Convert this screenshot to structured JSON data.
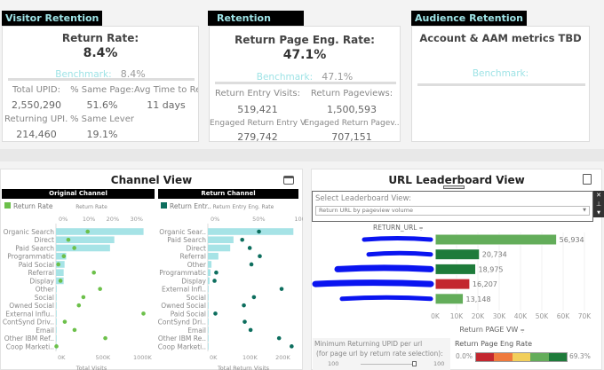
{
  "visitor_retention": {
    "tab": "Visitor Retention",
    "title": "Return Rate:",
    "value": "8.4%",
    "benchmark_label": "Benchmark:",
    "benchmark_value": "8.4%",
    "metrics": [
      {
        "label": "Total UPID:",
        "value": "2,550,290"
      },
      {
        "label": "% Same Page:",
        "value": "51.6%"
      },
      {
        "label": "Avg Time to Re..",
        "value": "11 days"
      },
      {
        "label": "Returning UPI..",
        "value": "214,460"
      },
      {
        "label": "% Same Lever:",
        "value": "19.1%"
      }
    ]
  },
  "retention_quality": {
    "tab": "Retention Quality",
    "title": "Return Page Eng. Rate:",
    "value": "47.1%",
    "benchmark_label": "Benchmark:",
    "benchmark_value": "47.1%",
    "metrics": [
      {
        "label": "Return Entry Visits:",
        "value": "519,421"
      },
      {
        "label": "Return Pageviews:",
        "value": "1,500,593"
      },
      {
        "label": "Engaged Return Entry V..",
        "value": "279,742"
      },
      {
        "label": "Engaged Return Pagev..",
        "value": "707,151"
      }
    ]
  },
  "audience_retention": {
    "tab": "Audience Retention",
    "title": "Account & AAM metrics TBD",
    "benchmark_label": "Benchmark:"
  },
  "channel_view": {
    "title": "Channel View",
    "icon": "window-icon"
  },
  "chart_data": [
    {
      "type": "bar",
      "title": "Original Channel",
      "legend": "Return Rate",
      "top_axis_label": "Return Rate",
      "xlabel": "Total Visits",
      "categories": [
        "Organic Search",
        "Direct",
        "Paid Search",
        "Programmatic",
        "Paid Social",
        "Referral",
        "Display",
        "Other",
        "Social",
        "Owned Social",
        "External Influ..",
        "ContSynd Driv..",
        "Email",
        "Other IBM Ref..",
        "Coop Marketi.."
      ],
      "bar_values": [
        1160000,
        773000,
        716000,
        136000,
        114000,
        102000,
        102000,
        10000,
        8000,
        6000,
        3000,
        1000,
        1000,
        1000,
        5000
      ],
      "dot_values": [
        13.3,
        5.2,
        7.7,
        3.3,
        1.0,
        15.9,
        1.9,
        18.5,
        11.5,
        9.6,
        36.7,
        3.7,
        7.8,
        20.7,
        0.2
      ],
      "bar_ticks": [
        "0K",
        "500K",
        "1000K"
      ],
      "bar_tick_values": [
        0,
        500000,
        1000000
      ],
      "dot_ticks": [
        "0%",
        "10%",
        "20%",
        "30%"
      ],
      "dot_tick_values": [
        0,
        10,
        20,
        30
      ],
      "bar_color": "#a6e3e6",
      "dot_color": "#6cc04a"
    },
    {
      "type": "bar",
      "title": "Return Channel",
      "legend": "Return Entr..",
      "top_axis_label": "Return Entry Eng. Rate",
      "xlabel": "Total Return Visits",
      "categories": [
        "Organic Sear..",
        "Paid Search",
        "Direct",
        "Referral",
        "Other",
        "Programmatic",
        "Display",
        "External Infl..",
        "Social",
        "Owned Social",
        "Paid Social",
        "ContSynd Dri..",
        "Email",
        "Other IBM Re..",
        "Coop Marketi.."
      ],
      "bar_values": [
        260000,
        78000,
        68000,
        32000,
        11000,
        8000,
        5000,
        1000,
        1000,
        1000,
        1000,
        500,
        500,
        500,
        500
      ],
      "dot_values": [
        61,
        41,
        50,
        62,
        52,
        10,
        8,
        88,
        55,
        43,
        9,
        44,
        51,
        85,
        100
      ],
      "bar_ticks": [
        "0K",
        "100K",
        "200K"
      ],
      "bar_tick_values": [
        0,
        100000,
        200000
      ],
      "dot_ticks": [
        "0%",
        "50%",
        "100%"
      ],
      "dot_tick_values": [
        0,
        50,
        100
      ],
      "bar_color": "#a6e3e6",
      "dot_color": "#0d6e5e"
    },
    {
      "type": "bar",
      "title": "URL Leaderboard View",
      "ylabel": "RETURN_URL",
      "xlabel": "Return PAGE VW",
      "values": [
        56934,
        20734,
        18975,
        16207,
        13148
      ],
      "labels": [
        "56,934",
        "20,734",
        "18,975",
        "16,207",
        "13,148"
      ],
      "colors": [
        "#63ad5a",
        "#1e7b3a",
        "#1e7b3a",
        "#c3272f",
        "#63ad5a"
      ],
      "ticks": [
        "0K",
        "10K",
        "20K",
        "30K",
        "40K",
        "50K",
        "60K",
        "70K"
      ],
      "xlim": [
        0,
        70000
      ]
    }
  ],
  "leaderboard": {
    "title": "URL Leaderboard View",
    "filter_label": "Select Leaderboard View:",
    "filter_value": "Return URL by pageview volume",
    "slider_label_1": "Minimum Returning UPID per url",
    "slider_label_2": "(for page url by return rate selection):",
    "slider_min": "100",
    "slider_max": "100",
    "legend_title": "Return Page Eng Rate",
    "legend_min": "0.0%",
    "legend_max": "69.3%",
    "legend_colors": [
      "#c3272f",
      "#ef7a3d",
      "#f2cf5b",
      "#63ad5a",
      "#1e7b3a"
    ],
    "redaction_color": "#0a14f0"
  }
}
